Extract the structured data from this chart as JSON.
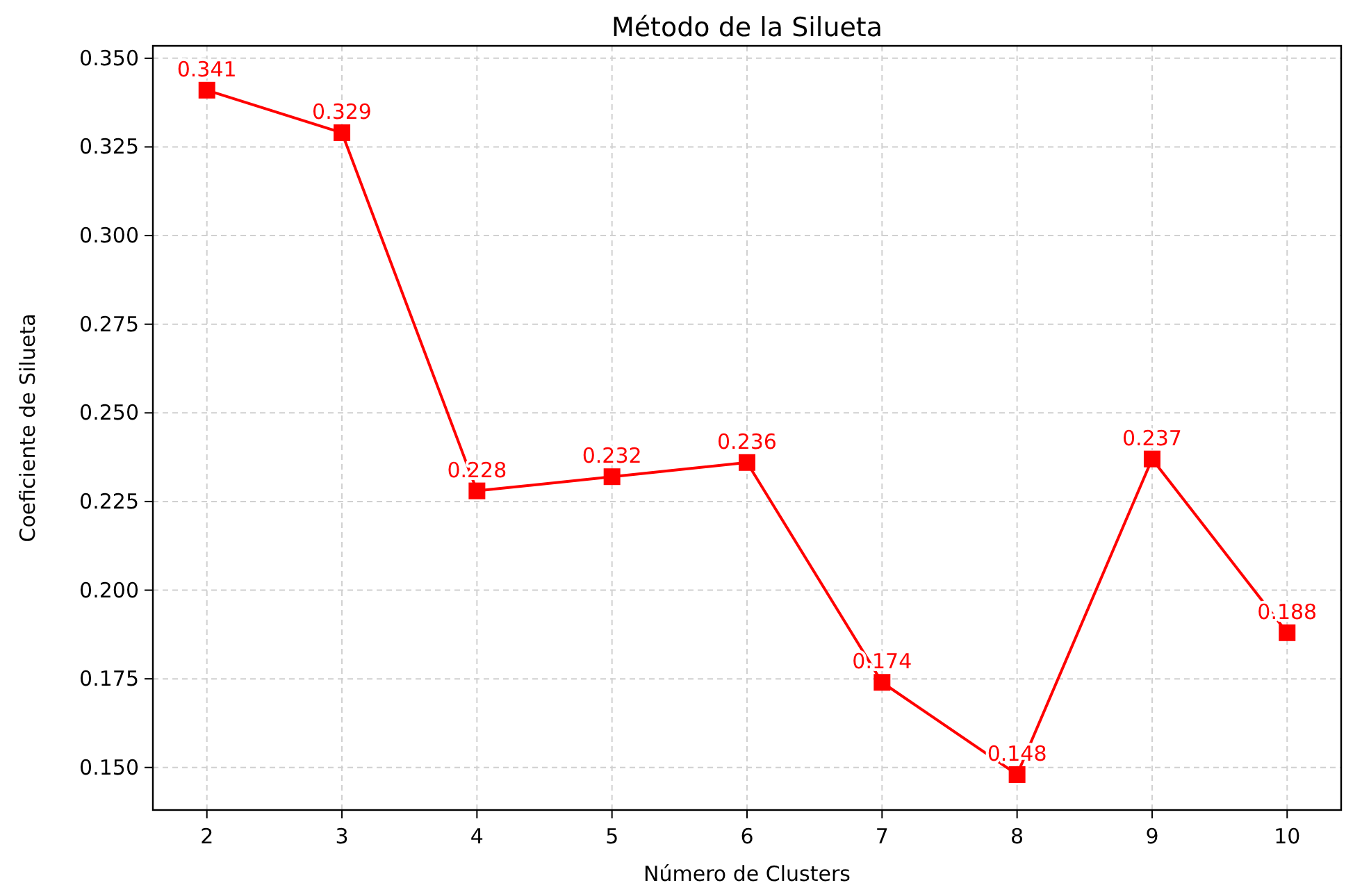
{
  "chart_data": {
    "type": "line",
    "title": "Método de la Silueta",
    "xlabel": "Número de Clusters",
    "ylabel": "Coeficiente de Silueta",
    "x": [
      2,
      3,
      4,
      5,
      6,
      7,
      8,
      9,
      10
    ],
    "series": [
      {
        "color": "#ff0000",
        "values": [
          0.341,
          0.329,
          0.228,
          0.232,
          0.236,
          0.174,
          0.148,
          0.237,
          0.188
        ]
      }
    ],
    "data_labels": true,
    "marker": "square",
    "line_style": "solid",
    "grid": true,
    "xlim": [
      1.6,
      10.4
    ],
    "xticks": [
      2,
      3,
      4,
      5,
      6,
      7,
      8,
      9,
      10
    ],
    "ylim": [
      0.138,
      0.3535
    ],
    "yticks": [
      {
        "value": 0.15,
        "label": "0.150"
      },
      {
        "value": 0.175,
        "label": "0.175"
      },
      {
        "value": 0.2,
        "label": "0.200"
      },
      {
        "value": 0.225,
        "label": "0.225"
      },
      {
        "value": 0.25,
        "label": "0.250"
      },
      {
        "value": 0.275,
        "label": "0.275"
      },
      {
        "value": 0.3,
        "label": "0.300"
      },
      {
        "value": 0.325,
        "label": "0.325"
      },
      {
        "value": 0.35,
        "label": "0.350"
      }
    ]
  }
}
